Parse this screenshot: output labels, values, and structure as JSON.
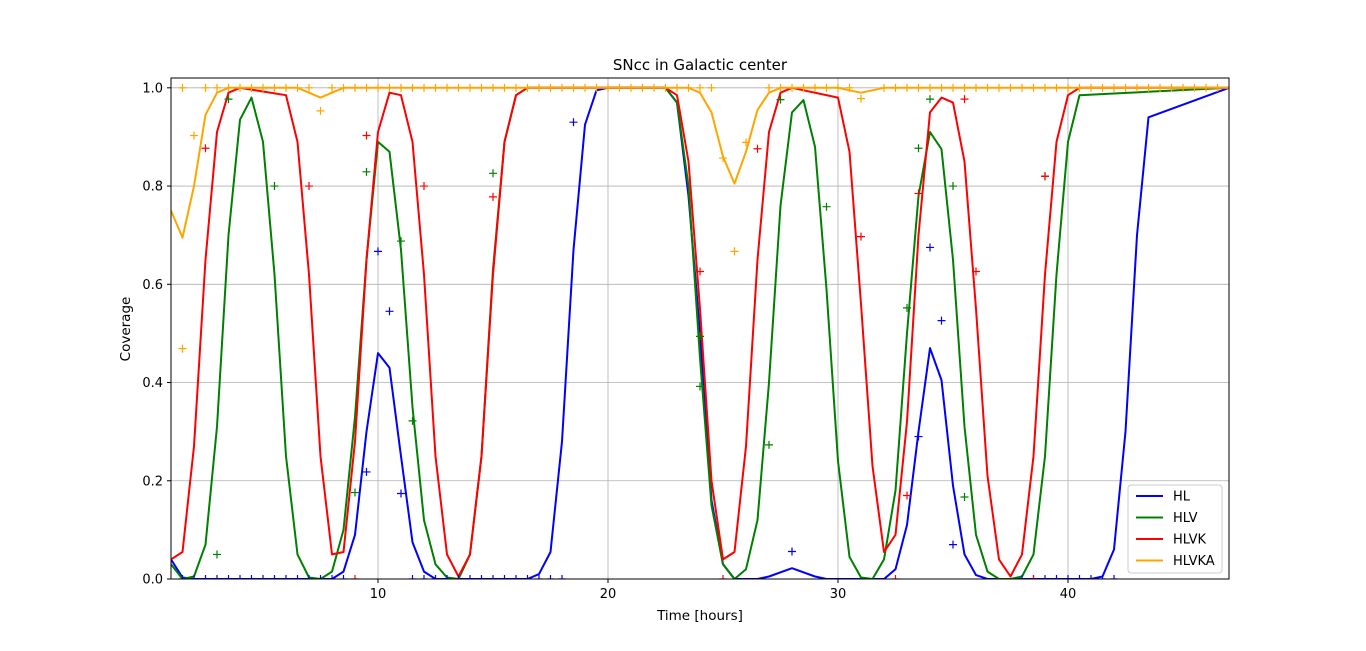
{
  "chart_data": {
    "type": "line",
    "title": "SNcc in Galactic center",
    "xlabel": "Time [hours]",
    "ylabel": "Coverage",
    "xlim": [
      1,
      47
    ],
    "ylim": [
      0,
      1.02
    ],
    "xticks": [
      10,
      20,
      30,
      40
    ],
    "yticks": [
      "0.0",
      "0.2",
      "0.4",
      "0.6",
      "0.8",
      "1.0"
    ],
    "grid": true,
    "legend_position": "lower-right",
    "series": [
      {
        "name": "HL",
        "color": "#0000ff",
        "x": [
          1.0,
          1.5,
          2.0,
          3.0,
          8.0,
          8.5,
          9.0,
          9.5,
          10.0,
          10.5,
          11.0,
          11.5,
          12.0,
          12.5,
          16.5,
          17.0,
          17.5,
          18.0,
          18.5,
          19.0,
          19.5,
          20.0,
          22.5,
          23.0,
          23.5,
          24.0,
          24.5,
          25.0,
          25.5,
          26.5,
          27.0,
          28.0,
          29.0,
          29.5,
          32.0,
          32.5,
          33.0,
          33.5,
          34.0,
          34.5,
          35.0,
          35.5,
          36.0,
          36.5,
          41.0,
          41.5,
          42.0,
          42.5,
          43.0,
          43.5,
          47.0
        ],
        "y": [
          0.04,
          0.003,
          0.0,
          0.0,
          0.0,
          0.015,
          0.09,
          0.3,
          0.46,
          0.43,
          0.25,
          0.075,
          0.015,
          0.0,
          0.0,
          0.01,
          0.055,
          0.28,
          0.67,
          0.925,
          0.995,
          1.0,
          1.0,
          0.97,
          0.78,
          0.5,
          0.16,
          0.03,
          0.0,
          0.0,
          0.005,
          0.022,
          0.005,
          0.0,
          0.0,
          0.02,
          0.11,
          0.3,
          0.47,
          0.405,
          0.19,
          0.05,
          0.008,
          0.0,
          0.0,
          0.005,
          0.06,
          0.3,
          0.7,
          0.94,
          1.0
        ]
      },
      {
        "name": "HLV",
        "color": "#008000",
        "x": [
          1.0,
          1.5,
          2.0,
          2.5,
          3.0,
          3.5,
          4.0,
          4.5,
          5.0,
          5.5,
          6.0,
          6.5,
          7.0,
          7.5,
          8.0,
          8.5,
          9.0,
          9.5,
          10.0,
          10.5,
          11.0,
          11.5,
          12.0,
          12.5,
          13.0,
          13.5,
          14.0,
          14.5,
          15.0,
          15.5,
          16.0,
          16.5,
          22.5,
          23.0,
          23.5,
          24.0,
          24.5,
          25.0,
          25.5,
          26.0,
          26.5,
          27.0,
          27.5,
          28.0,
          28.5,
          29.0,
          29.5,
          30.0,
          30.5,
          31.0,
          31.5,
          32.0,
          32.5,
          33.0,
          33.5,
          34.0,
          34.5,
          35.0,
          35.5,
          36.0,
          36.5,
          37.0,
          37.5,
          38.0,
          38.5,
          39.0,
          39.5,
          40.0,
          40.5,
          47.0
        ],
        "y": [
          0.03,
          0.0,
          0.005,
          0.07,
          0.31,
          0.7,
          0.935,
          0.98,
          0.89,
          0.62,
          0.25,
          0.05,
          0.003,
          0.0,
          0.015,
          0.1,
          0.33,
          0.65,
          0.89,
          0.87,
          0.67,
          0.35,
          0.12,
          0.03,
          0.003,
          0.0,
          0.05,
          0.25,
          0.63,
          0.89,
          0.985,
          1.0,
          1.0,
          0.97,
          0.8,
          0.45,
          0.15,
          0.03,
          0.0,
          0.02,
          0.12,
          0.4,
          0.76,
          0.95,
          0.975,
          0.88,
          0.59,
          0.24,
          0.045,
          0.003,
          0.0,
          0.04,
          0.18,
          0.5,
          0.78,
          0.91,
          0.875,
          0.65,
          0.31,
          0.09,
          0.015,
          0.0,
          0.0,
          0.005,
          0.05,
          0.25,
          0.62,
          0.89,
          0.985,
          1.0
        ]
      },
      {
        "name": "HLVK",
        "color": "#ff0000",
        "x": [
          1.0,
          1.5,
          2.0,
          2.5,
          3.0,
          3.5,
          4.0,
          6.0,
          6.5,
          7.0,
          7.5,
          8.0,
          8.5,
          9.0,
          9.5,
          10.0,
          10.5,
          11.0,
          11.5,
          12.0,
          12.5,
          13.0,
          13.5,
          14.0,
          14.5,
          15.0,
          15.5,
          16.0,
          16.5,
          22.5,
          23.0,
          23.5,
          24.0,
          24.5,
          25.0,
          25.5,
          26.0,
          26.5,
          27.0,
          27.5,
          28.0,
          30.0,
          30.5,
          31.0,
          31.5,
          32.0,
          32.5,
          33.0,
          33.5,
          34.0,
          34.5,
          35.0,
          35.5,
          36.0,
          36.5,
          37.0,
          37.5,
          38.0,
          38.5,
          39.0,
          39.5,
          40.0,
          40.5,
          47.0
        ],
        "y": [
          0.04,
          0.055,
          0.27,
          0.65,
          0.91,
          0.99,
          1.0,
          0.985,
          0.89,
          0.62,
          0.25,
          0.05,
          0.055,
          0.28,
          0.65,
          0.91,
          0.99,
          0.985,
          0.89,
          0.62,
          0.25,
          0.05,
          0.005,
          0.05,
          0.25,
          0.62,
          0.89,
          0.985,
          1.0,
          1.0,
          0.985,
          0.85,
          0.55,
          0.2,
          0.04,
          0.055,
          0.27,
          0.65,
          0.91,
          0.99,
          1.0,
          0.98,
          0.87,
          0.56,
          0.23,
          0.055,
          0.09,
          0.32,
          0.7,
          0.95,
          0.98,
          0.97,
          0.85,
          0.55,
          0.21,
          0.04,
          0.005,
          0.05,
          0.25,
          0.62,
          0.89,
          0.985,
          1.0,
          1.0
        ]
      },
      {
        "name": "HLVKA",
        "color": "#ffa500",
        "x": [
          1.0,
          1.5,
          2.0,
          2.5,
          3.0,
          3.5,
          6.5,
          7.0,
          7.5,
          8.0,
          8.5,
          9.0,
          22.5,
          23.0,
          23.5,
          24.0,
          24.5,
          25.0,
          25.5,
          26.0,
          26.5,
          27.0,
          27.5,
          28.0,
          30.0,
          30.5,
          31.0,
          31.5,
          32.0,
          47.0
        ],
        "y": [
          0.75,
          0.695,
          0.8,
          0.945,
          0.99,
          1.0,
          1.0,
          0.99,
          0.98,
          0.99,
          1.0,
          1.0,
          1.0,
          1.0,
          1.0,
          0.99,
          0.95,
          0.86,
          0.805,
          0.87,
          0.955,
          0.99,
          1.0,
          1.0,
          1.0,
          0.995,
          0.99,
          0.995,
          1.0,
          1.0
        ]
      }
    ],
    "markers": [
      {
        "name": "HL",
        "color": "#0000ff",
        "points": [
          [
            1.5,
            0
          ],
          [
            2,
            0
          ],
          [
            2.5,
            0
          ],
          [
            3,
            0
          ],
          [
            3.5,
            0
          ],
          [
            4,
            0
          ],
          [
            4.5,
            0
          ],
          [
            5,
            0
          ],
          [
            5.5,
            0
          ],
          [
            6,
            0
          ],
          [
            6.5,
            0
          ],
          [
            7,
            0
          ],
          [
            7.5,
            0
          ],
          [
            8,
            0
          ],
          [
            8.5,
            0
          ],
          [
            9.5,
            0.218
          ],
          [
            10,
            0.667
          ],
          [
            10.5,
            0.545
          ],
          [
            11,
            0.174
          ],
          [
            11.5,
            0
          ],
          [
            12,
            0
          ],
          [
            12.5,
            0
          ],
          [
            13,
            0
          ],
          [
            13.5,
            0
          ],
          [
            14,
            0
          ],
          [
            14.5,
            0
          ],
          [
            15,
            0
          ],
          [
            15.5,
            0
          ],
          [
            16,
            0
          ],
          [
            16.5,
            0
          ],
          [
            17,
            0
          ],
          [
            17.5,
            0
          ],
          [
            18,
            0
          ],
          [
            18.5,
            0.93
          ],
          [
            28,
            0.056
          ],
          [
            33.5,
            0.29
          ],
          [
            34,
            0.675
          ],
          [
            34.5,
            0.526
          ],
          [
            35,
            0.07
          ],
          [
            38,
            0
          ],
          [
            38.5,
            0
          ],
          [
            39,
            0
          ],
          [
            39.5,
            0
          ],
          [
            40,
            0
          ],
          [
            40.5,
            0
          ],
          [
            41,
            0
          ],
          [
            41.5,
            0
          ],
          [
            42,
            0
          ]
        ]
      },
      {
        "name": "HLV",
        "color": "#008000",
        "points": [
          [
            3,
            0.05
          ],
          [
            3.5,
            0.977
          ],
          [
            5.5,
            0.8
          ],
          [
            9,
            0.176
          ],
          [
            9.5,
            0.829
          ],
          [
            11,
            0.688
          ],
          [
            11.5,
            0.322
          ],
          [
            15,
            0.826
          ],
          [
            24,
            0.494
          ],
          [
            24,
            0.392
          ],
          [
            27,
            0.273
          ],
          [
            27.5,
            0.976
          ],
          [
            29.5,
            0.758
          ],
          [
            33,
            0.552
          ],
          [
            33.5,
            0.877
          ],
          [
            34,
            0.977
          ],
          [
            35,
            0.8
          ],
          [
            35.5,
            0.167
          ],
          [
            39,
            0.82
          ]
        ]
      },
      {
        "name": "HLVK",
        "color": "#ff0000",
        "points": [
          [
            2.5,
            0.877
          ],
          [
            7,
            0.8
          ],
          [
            9,
            0.0
          ],
          [
            9.5,
            0.903
          ],
          [
            12,
            0.8
          ],
          [
            15,
            0.778
          ],
          [
            24,
            0.626
          ],
          [
            25,
            0.0
          ],
          [
            26.5,
            0.876
          ],
          [
            31,
            0.697
          ],
          [
            32.5,
            0.0
          ],
          [
            33,
            0.17
          ],
          [
            33.5,
            0.785
          ],
          [
            35.5,
            0.977
          ],
          [
            36,
            0.626
          ],
          [
            38.5,
            0.0
          ],
          [
            39,
            0.82
          ]
        ]
      },
      {
        "name": "HLVKA",
        "color": "#ffa500",
        "points": [
          [
            1.5,
            0.469
          ],
          [
            2,
            0.903
          ],
          [
            7.5,
            0.953
          ],
          [
            25,
            0.857
          ],
          [
            25.5,
            0.667
          ],
          [
            26,
            0.889
          ],
          [
            31,
            0.978
          ],
          [
            1.5,
            1
          ],
          [
            2.5,
            1
          ],
          [
            3,
            1
          ],
          [
            3.5,
            1
          ],
          [
            4,
            1
          ],
          [
            4.5,
            1
          ],
          [
            5,
            1
          ],
          [
            5.5,
            1
          ],
          [
            6,
            1
          ],
          [
            6.5,
            1
          ],
          [
            7,
            1
          ],
          [
            8,
            1
          ],
          [
            8.5,
            1
          ],
          [
            9,
            1
          ],
          [
            9.5,
            1
          ],
          [
            10,
            1
          ],
          [
            10.5,
            1
          ],
          [
            11,
            1
          ],
          [
            11.5,
            1
          ],
          [
            12,
            1
          ],
          [
            12.5,
            1
          ],
          [
            13,
            1
          ],
          [
            13.5,
            1
          ],
          [
            14,
            1
          ],
          [
            14.5,
            1
          ],
          [
            15,
            1
          ],
          [
            15.5,
            1
          ],
          [
            16,
            1
          ],
          [
            16.5,
            1
          ],
          [
            17,
            1
          ],
          [
            17.5,
            1
          ],
          [
            18,
            1
          ],
          [
            18.5,
            1
          ],
          [
            19,
            1
          ],
          [
            19.5,
            1
          ],
          [
            20,
            1
          ],
          [
            20.5,
            1
          ],
          [
            21,
            1
          ],
          [
            21.5,
            1
          ],
          [
            22,
            1
          ],
          [
            22.5,
            1
          ],
          [
            23,
            1
          ],
          [
            23.5,
            1
          ],
          [
            24,
            1
          ],
          [
            24.5,
            1
          ],
          [
            27,
            1
          ],
          [
            27.5,
            1
          ],
          [
            28,
            1
          ],
          [
            28.5,
            1
          ],
          [
            29,
            1
          ],
          [
            29.5,
            1
          ],
          [
            30,
            1
          ],
          [
            30.5,
            1
          ],
          [
            32,
            1
          ],
          [
            32.5,
            1
          ],
          [
            33,
            1
          ],
          [
            33.5,
            1
          ],
          [
            34,
            1
          ],
          [
            34.5,
            1
          ],
          [
            35,
            1
          ],
          [
            35.5,
            1
          ],
          [
            36,
            1
          ],
          [
            36.5,
            1
          ],
          [
            37,
            1
          ],
          [
            37.5,
            1
          ],
          [
            38,
            1
          ],
          [
            38.5,
            1
          ],
          [
            39,
            1
          ],
          [
            39.5,
            1
          ],
          [
            40,
            1
          ],
          [
            40.5,
            1
          ],
          [
            41,
            1
          ],
          [
            41.5,
            1
          ],
          [
            42,
            1
          ],
          [
            42.5,
            1
          ],
          [
            43,
            1
          ],
          [
            43.5,
            1
          ],
          [
            44,
            1
          ],
          [
            44.5,
            1
          ],
          [
            45,
            1
          ],
          [
            45.5,
            1
          ],
          [
            46,
            1
          ],
          [
            46.5,
            1
          ]
        ]
      }
    ],
    "legend": [
      "HL",
      "HLV",
      "HLVK",
      "HLVKA"
    ]
  }
}
